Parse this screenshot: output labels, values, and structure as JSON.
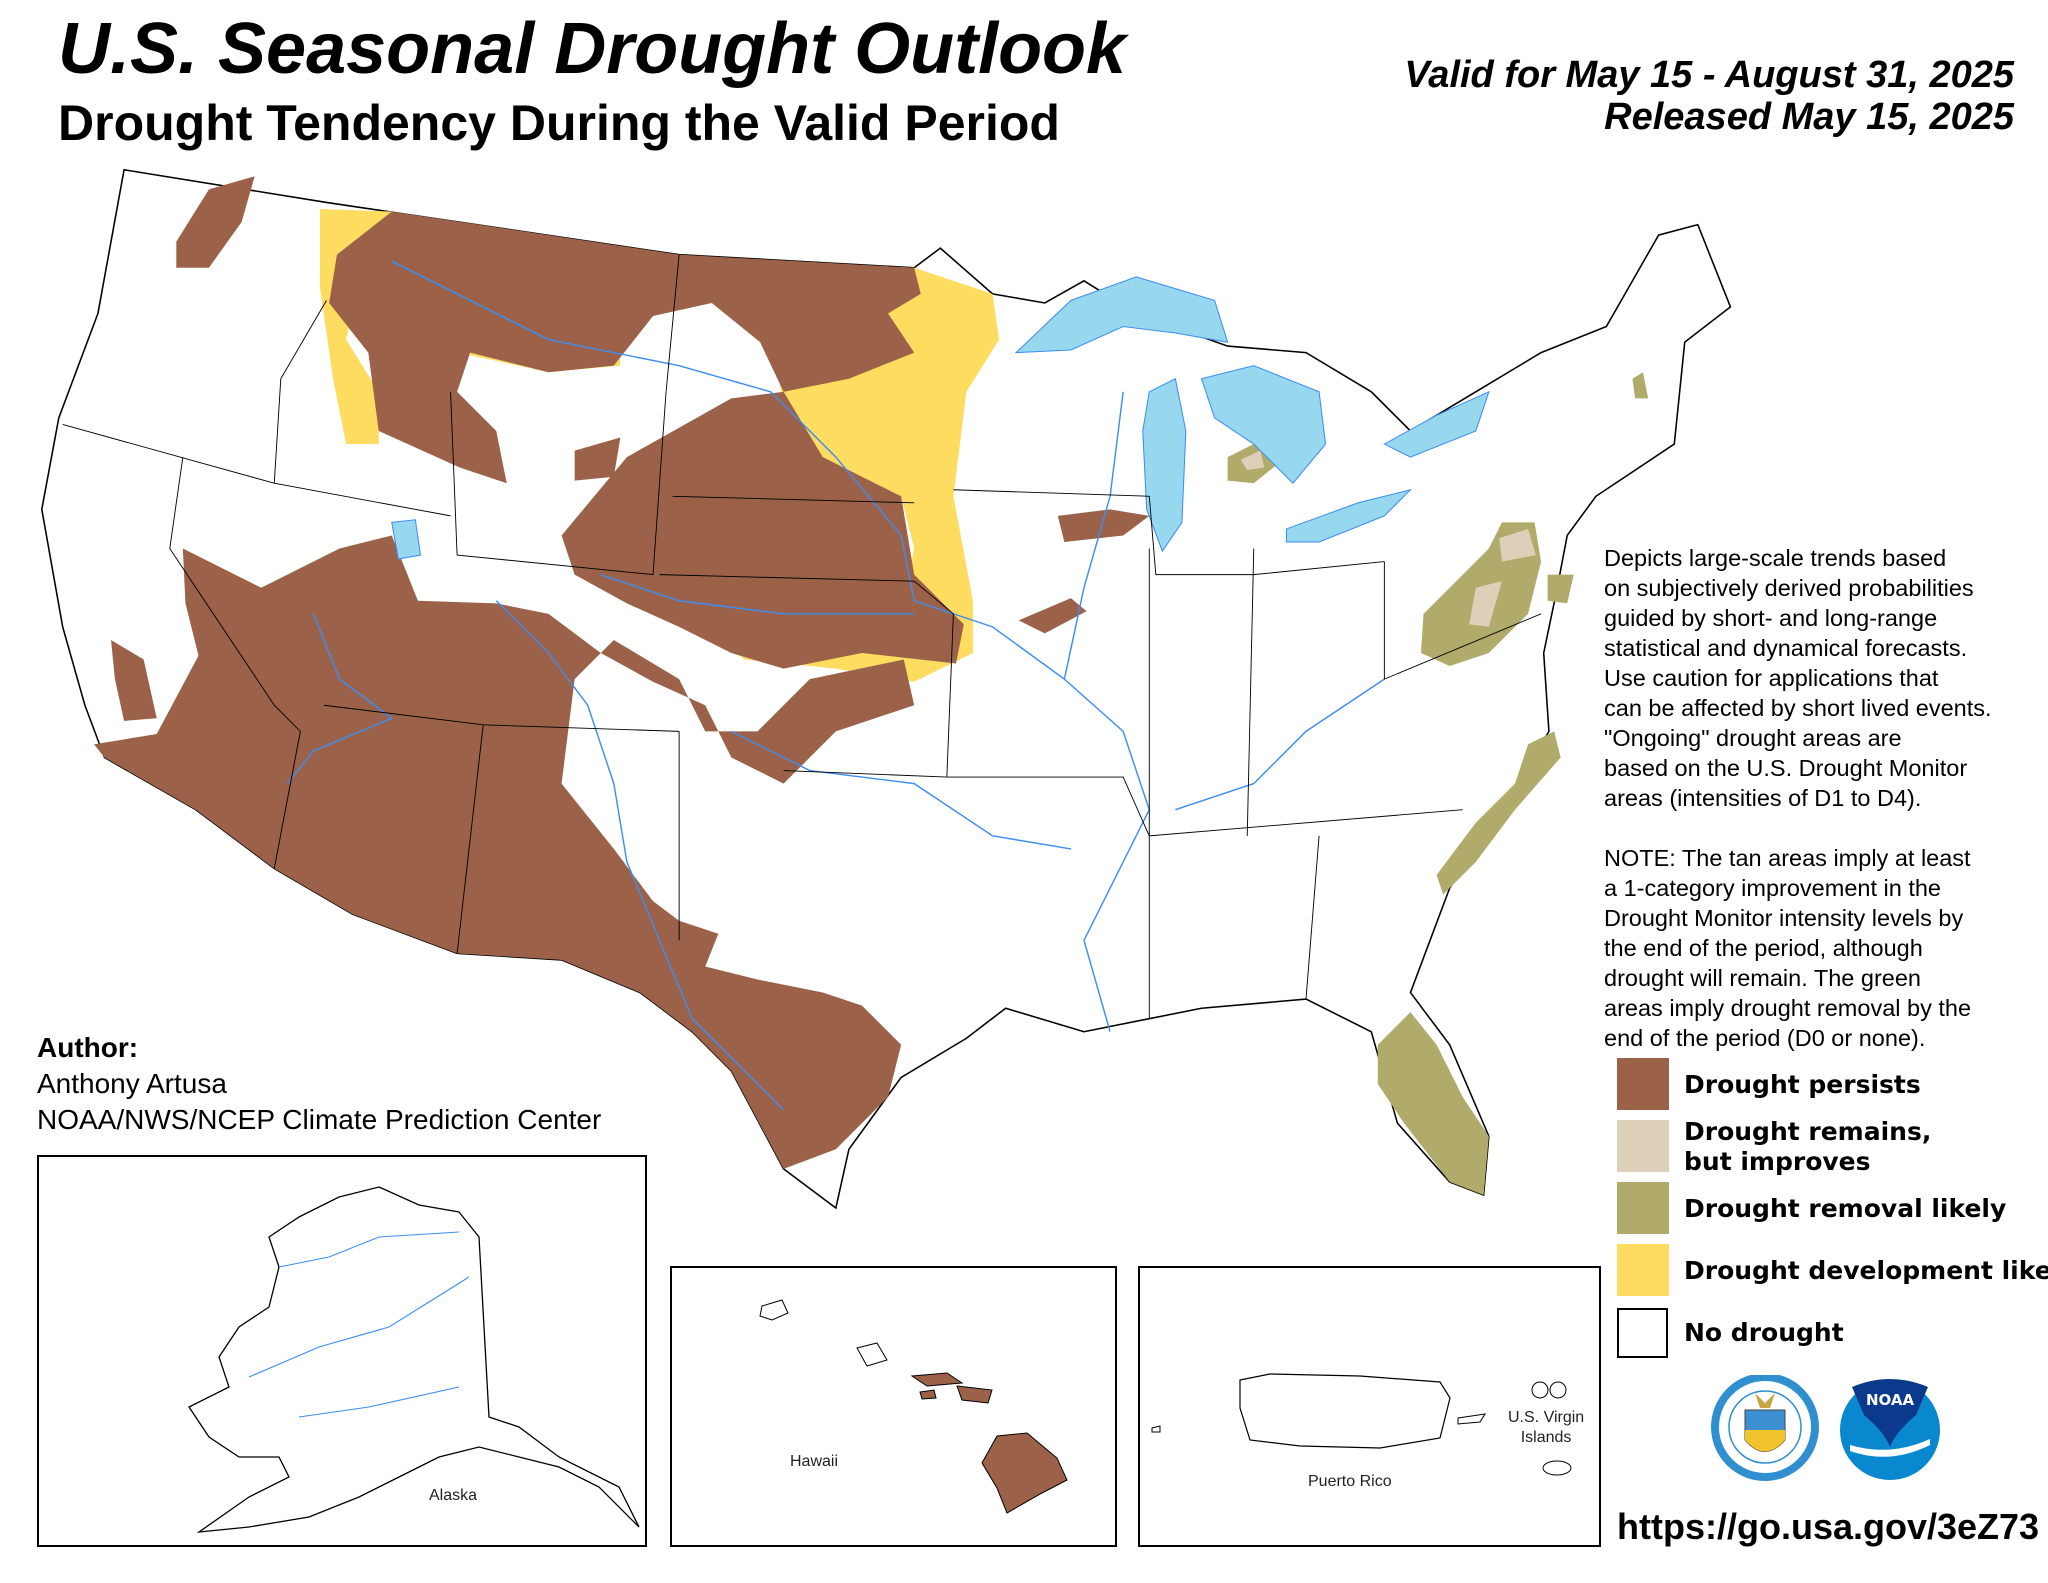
{
  "header": {
    "title": "U.S. Seasonal Drought Outlook",
    "subtitle": "Drought Tendency During the Valid Period",
    "valid": "Valid for May 15 - August 31, 2025",
    "released": "Released May 15, 2025"
  },
  "note": {
    "paragraph1": "Depicts large-scale trends based\non subjectively derived probabilities\nguided by short- and long-range\nstatistical and dynamical forecasts.\nUse caution for applications that\ncan be affected by short lived events.\n\"Ongoing\" drought areas are\nbased on the U.S. Drought Monitor\nareas (intensities of D1 to D4).",
    "paragraph2": "NOTE: The tan areas imply at least\na 1-category improvement in the\nDrought Monitor intensity levels by\nthe end of the period, although\ndrought will remain. The green\nareas imply drought removal by the\nend of the period (D0 or none)."
  },
  "legend": {
    "items": [
      {
        "label": "Drought persists",
        "color": "#9b6249"
      },
      {
        "label": "Drought remains,\nbut improves",
        "color": "#ddd0b9"
      },
      {
        "label": "Drought removal likely",
        "color": "#b0ab6a"
      },
      {
        "label": "Drought development likely",
        "color": "#fedc5f"
      },
      {
        "label": "No drought",
        "color": "#ffffff"
      }
    ]
  },
  "author": {
    "heading": "Author:",
    "name": "Anthony Artusa",
    "org": "NOAA/NWS/NCEP Climate Prediction Center"
  },
  "insets": {
    "alaska": "Alaska",
    "hawaii": "Hawaii",
    "puerto_rico": "Puerto Rico",
    "virgin_islands": "U.S. Virgin\nIslands"
  },
  "logos": {
    "commerce_seal": "DEPARTMENT OF COMMERCE · UNITED STATES OF AMERICA",
    "noaa": "NOAA"
  },
  "url": "https://go.usa.gov/3eZ73",
  "colors": {
    "water": "#97d8ef",
    "rivers": "#3d8ef0"
  }
}
